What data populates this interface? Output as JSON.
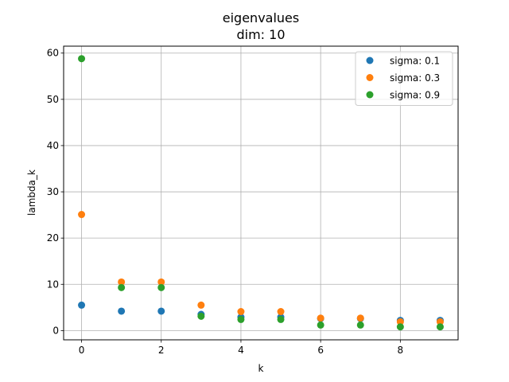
{
  "chart_data": {
    "type": "scatter",
    "title_line1": "eigenvalues",
    "title_line2": "dim: 10",
    "xlabel": "k",
    "ylabel": "lambda_k",
    "xlim": [
      -0.45,
      9.45
    ],
    "ylim": [
      -2.0,
      61.5
    ],
    "xticks": [
      0,
      2,
      4,
      6,
      8
    ],
    "yticks": [
      0,
      10,
      20,
      30,
      40,
      50,
      60
    ],
    "grid": true,
    "legend_position": "top-right",
    "series": [
      {
        "name": "sigma: 0.1",
        "color": "#1f77b4",
        "x": [
          0,
          1,
          2,
          3,
          4,
          5,
          6,
          7,
          8,
          9
        ],
        "y": [
          5.5,
          4.2,
          4.2,
          3.5,
          2.9,
          2.9,
          2.6,
          2.6,
          2.2,
          2.2
        ]
      },
      {
        "name": "sigma: 0.3",
        "color": "#ff7f0e",
        "x": [
          0,
          1,
          2,
          3,
          4,
          5,
          6,
          7,
          8,
          9
        ],
        "y": [
          25.1,
          10.5,
          10.5,
          5.5,
          4.1,
          4.1,
          2.7,
          2.7,
          1.9,
          1.9
        ]
      },
      {
        "name": "sigma: 0.9",
        "color": "#2ca02c",
        "x": [
          0,
          1,
          2,
          3,
          4,
          5,
          6,
          7,
          8,
          9
        ],
        "y": [
          58.8,
          9.3,
          9.3,
          3.1,
          2.4,
          2.4,
          1.2,
          1.2,
          0.8,
          0.8
        ]
      }
    ]
  }
}
